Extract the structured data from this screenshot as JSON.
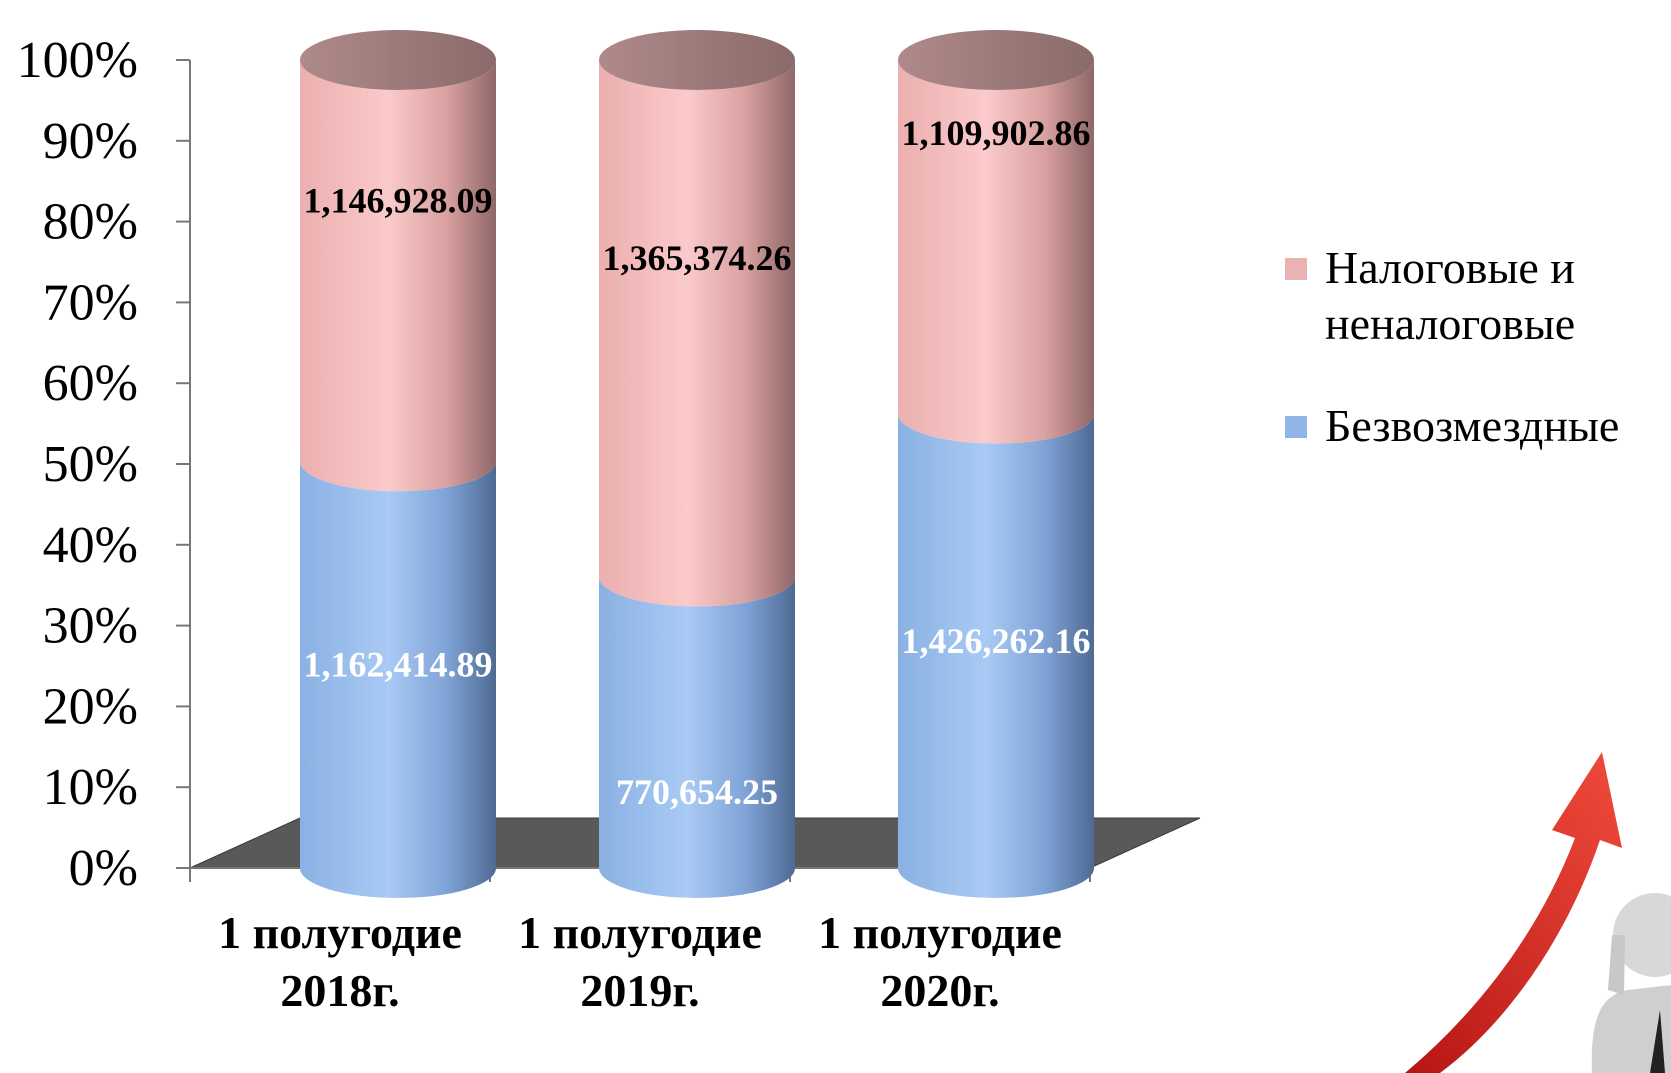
{
  "chart_data": {
    "type": "bar",
    "stacked": true,
    "normalized": true,
    "categories": [
      "1 полугодие 2018г.",
      "1 полугодие 2019г.",
      "1 полугодие 2020г."
    ],
    "category_lines": [
      [
        "1 полугодие",
        "2018г."
      ],
      [
        "1 полугодие",
        "2019г."
      ],
      [
        "1 полугодие",
        "2020г."
      ]
    ],
    "series": [
      {
        "name": "Безвозмездные",
        "values": [
          1162414.89,
          770654.25,
          1426262.16
        ],
        "labels": [
          "1,162,414.89",
          "770,654.25",
          "1,426,262.16"
        ],
        "color": "#8FB4E6"
      },
      {
        "name": "Налоговые и неналоговые",
        "values": [
          1146928.09,
          1365374.26,
          1109902.86
        ],
        "labels": [
          "1,146,928.09",
          "1,365,374.26",
          "1,109,902.86"
        ],
        "color": "#F2B5B5"
      }
    ],
    "ylim": [
      0,
      100
    ],
    "yticks": [
      "0%",
      "10%",
      "20%",
      "30%",
      "40%",
      "50%",
      "60%",
      "70%",
      "80%",
      "90%",
      "100%"
    ],
    "legend": {
      "position": "right",
      "lines": [
        [
          "Налоговые и",
          "неналоговые"
        ],
        [
          "Безвозмездные"
        ]
      ]
    }
  }
}
